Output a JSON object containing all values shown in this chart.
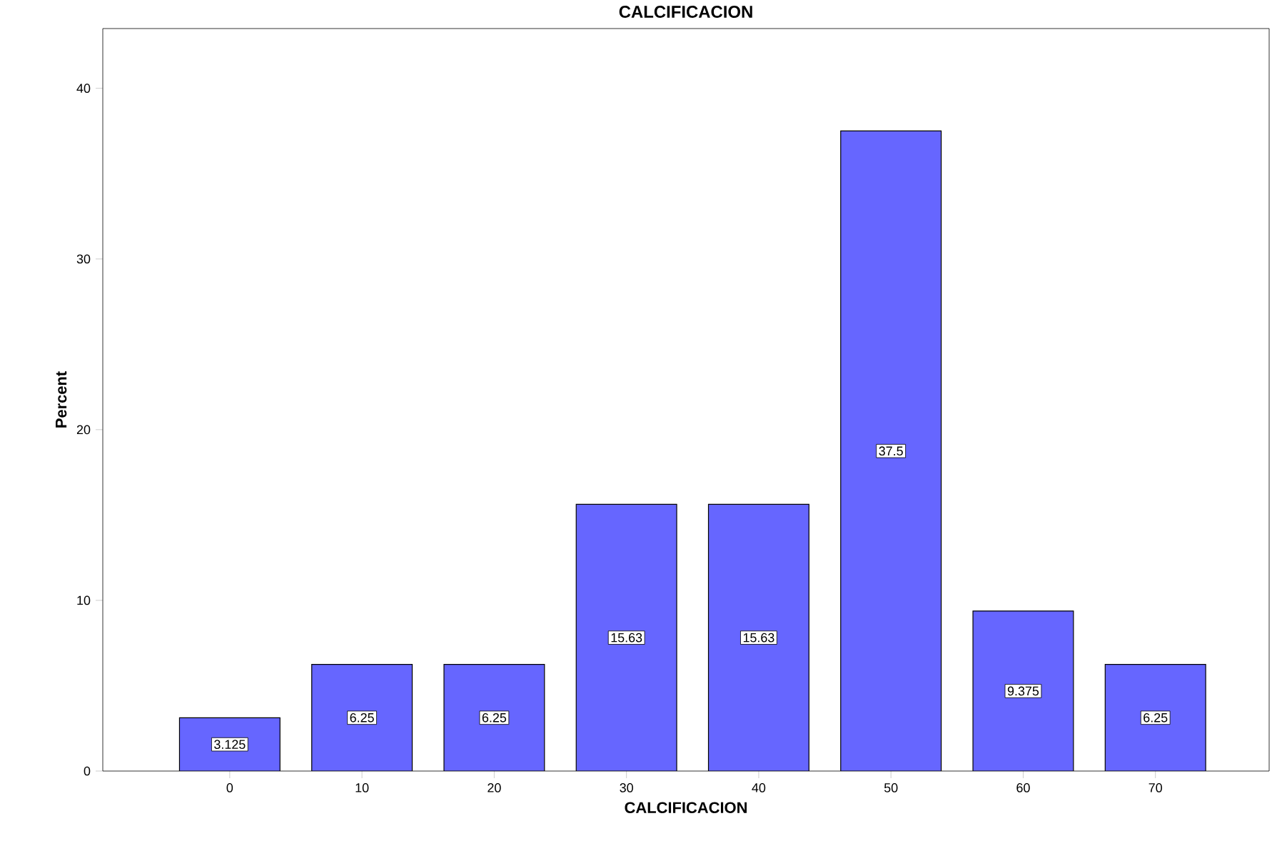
{
  "chart_data": {
    "type": "bar",
    "title": "CALCIFICACION",
    "xlabel": "CALCIFICACION",
    "ylabel": "Percent",
    "categories": [
      "0",
      "10",
      "20",
      "30",
      "40",
      "50",
      "60",
      "70"
    ],
    "values": [
      3.125,
      6.25,
      6.25,
      15.63,
      15.63,
      37.5,
      9.375,
      6.25
    ],
    "color": "#6666ff",
    "ylim": [
      0,
      43.5
    ],
    "yticks": [
      0,
      10,
      20,
      30,
      40
    ],
    "data_labels": true
  }
}
